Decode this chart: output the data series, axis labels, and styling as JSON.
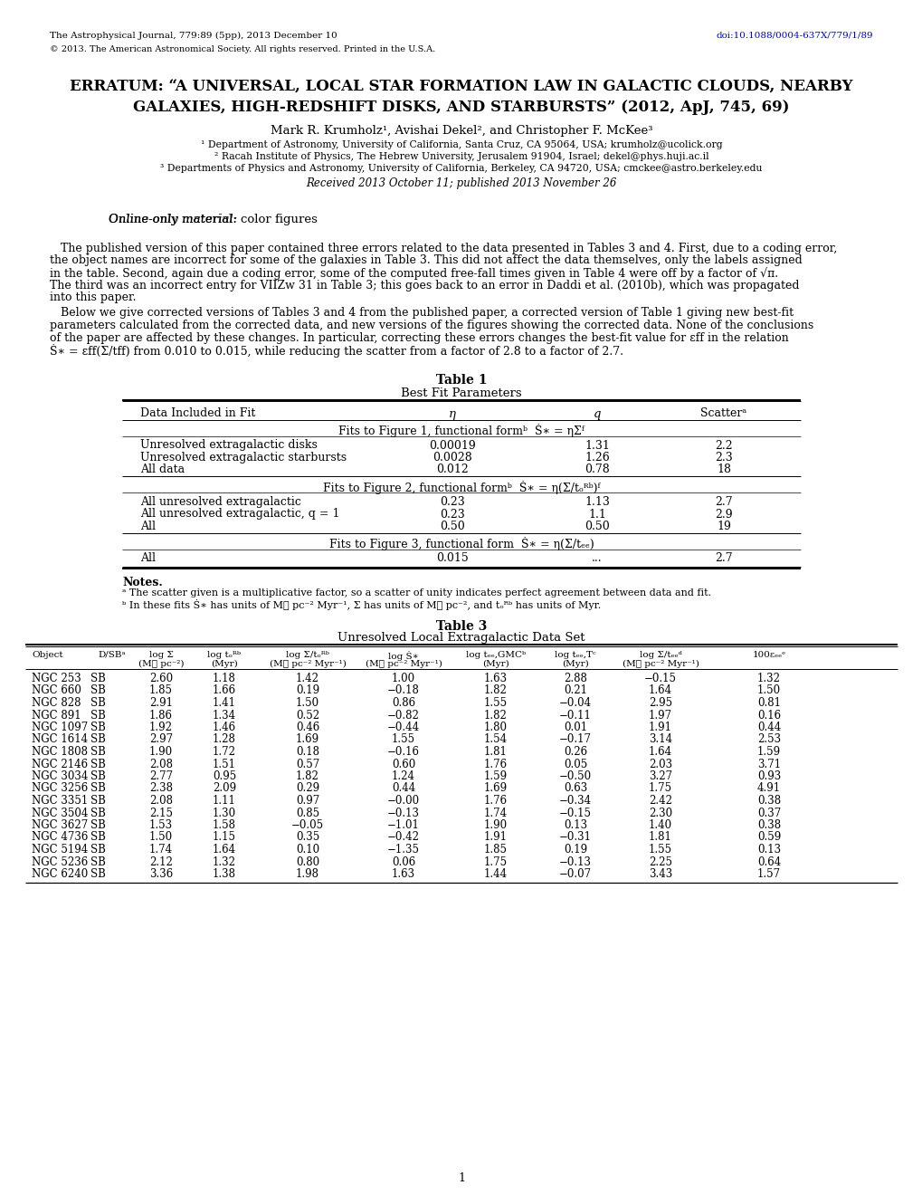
{
  "header_left": "The Astrophysical Journal, 779:89 (5pp), 2013 December 10",
  "header_right": "doi:10.1088/0004-637X/779/1/89",
  "copyright": "© 2013. The American Astronomical Society. All rights reserved. Printed in the U.S.A.",
  "title_line1": "ERRATUM: “A UNIVERSAL, LOCAL STAR FORMATION LAW IN GALACTIC CLOUDS, NEARBY",
  "title_line2": "GALAXIES, HIGH-REDSHIFT DISKS, AND STARBURSTS” (",
  "title_link": "2012, ApJ, 745, 69",
  "title_line2_end": ")",
  "affil1": "Department of Astronomy, University of California, Santa Cruz, CA 95064, USA; ",
  "affil1_link": "krumholz@ucolick.org",
  "affil2": "Racah Institute of Physics, The Hebrew University, Jerusalem 91904, Israel; ",
  "affil2_link": "dekel@phys.huji.ac.il",
  "affil3": "Departments of Physics and Astronomy, University of California, Berkeley, CA 94720, USA; ",
  "affil3_link": "cmckee@astro.berkeley.edu",
  "received": "Received 2013 October 11; published 2013 November 26",
  "table1_title": "Table 1",
  "table1_subtitle": "Best Fit Parameters",
  "table1_section1_rows": [
    [
      "Unresolved extragalactic disks",
      "0.00019",
      "1.31",
      "2.2"
    ],
    [
      "Unresolved extragalactic starbursts",
      "0.0028",
      "1.26",
      "2.3"
    ],
    [
      "All data",
      "0.012",
      "0.78",
      "18"
    ]
  ],
  "table1_section2_rows": [
    [
      "All unresolved extragalactic",
      "0.23",
      "1.13",
      "2.7"
    ],
    [
      "All unresolved extragalactic, q = 1",
      "0.23",
      "1.1",
      "2.9"
    ],
    [
      "All",
      "0.50",
      "0.50",
      "19"
    ]
  ],
  "table1_section3_rows": [
    [
      "All",
      "0.015",
      "...",
      "2.7"
    ]
  ],
  "table3_title": "Table 3",
  "table3_subtitle": "Unresolved Local Extragalactic Data Set",
  "table3_rows": [
    [
      "NGC 253",
      "SB",
      "2.60",
      "1.18",
      "1.42",
      "1.00",
      "1.63",
      "2.88",
      "−0.15",
      "1.32"
    ],
    [
      "NGC 660",
      "SB",
      "1.85",
      "1.66",
      "0.19",
      "−0.18",
      "1.82",
      "0.21",
      "1.64",
      "1.50"
    ],
    [
      "NGC 828",
      "SB",
      "2.91",
      "1.41",
      "1.50",
      "0.86",
      "1.55",
      "−0.04",
      "2.95",
      "0.81"
    ],
    [
      "NGC 891",
      "SB",
      "1.86",
      "1.34",
      "0.52",
      "−0.82",
      "1.82",
      "−0.11",
      "1.97",
      "0.16"
    ],
    [
      "NGC 1097",
      "SB",
      "1.92",
      "1.46",
      "0.46",
      "−0.44",
      "1.80",
      "0.01",
      "1.91",
      "0.44"
    ],
    [
      "NGC 1614",
      "SB",
      "2.97",
      "1.28",
      "1.69",
      "1.55",
      "1.54",
      "−0.17",
      "3.14",
      "2.53"
    ],
    [
      "NGC 1808",
      "SB",
      "1.90",
      "1.72",
      "0.18",
      "−0.16",
      "1.81",
      "0.26",
      "1.64",
      "1.59"
    ],
    [
      "NGC 2146",
      "SB",
      "2.08",
      "1.51",
      "0.57",
      "0.60",
      "1.76",
      "0.05",
      "2.03",
      "3.71"
    ],
    [
      "NGC 3034",
      "SB",
      "2.77",
      "0.95",
      "1.82",
      "1.24",
      "1.59",
      "−0.50",
      "3.27",
      "0.93"
    ],
    [
      "NGC 3256",
      "SB",
      "2.38",
      "2.09",
      "0.29",
      "0.44",
      "1.69",
      "0.63",
      "1.75",
      "4.91"
    ],
    [
      "NGC 3351",
      "SB",
      "2.08",
      "1.11",
      "0.97",
      "−0.00",
      "1.76",
      "−0.34",
      "2.42",
      "0.38"
    ],
    [
      "NGC 3504",
      "SB",
      "2.15",
      "1.30",
      "0.85",
      "−0.13",
      "1.74",
      "−0.15",
      "2.30",
      "0.37"
    ],
    [
      "NGC 3627",
      "SB",
      "1.53",
      "1.58",
      "−0.05",
      "−1.01",
      "1.90",
      "0.13",
      "1.40",
      "0.38"
    ],
    [
      "NGC 4736",
      "SB",
      "1.50",
      "1.15",
      "0.35",
      "−0.42",
      "1.91",
      "−0.31",
      "1.81",
      "0.59"
    ],
    [
      "NGC 5194",
      "SB",
      "1.74",
      "1.64",
      "0.10",
      "−1.35",
      "1.85",
      "0.19",
      "1.55",
      "0.13"
    ],
    [
      "NGC 5236",
      "SB",
      "2.12",
      "1.32",
      "0.80",
      "0.06",
      "1.75",
      "−0.13",
      "2.25",
      "0.64"
    ],
    [
      "NGC 6240",
      "SB",
      "3.36",
      "1.38",
      "1.98",
      "1.63",
      "1.44",
      "−0.07",
      "3.43",
      "1.57"
    ]
  ],
  "page_number": "1",
  "link_color": "#0000EE",
  "background_color": "#ffffff"
}
